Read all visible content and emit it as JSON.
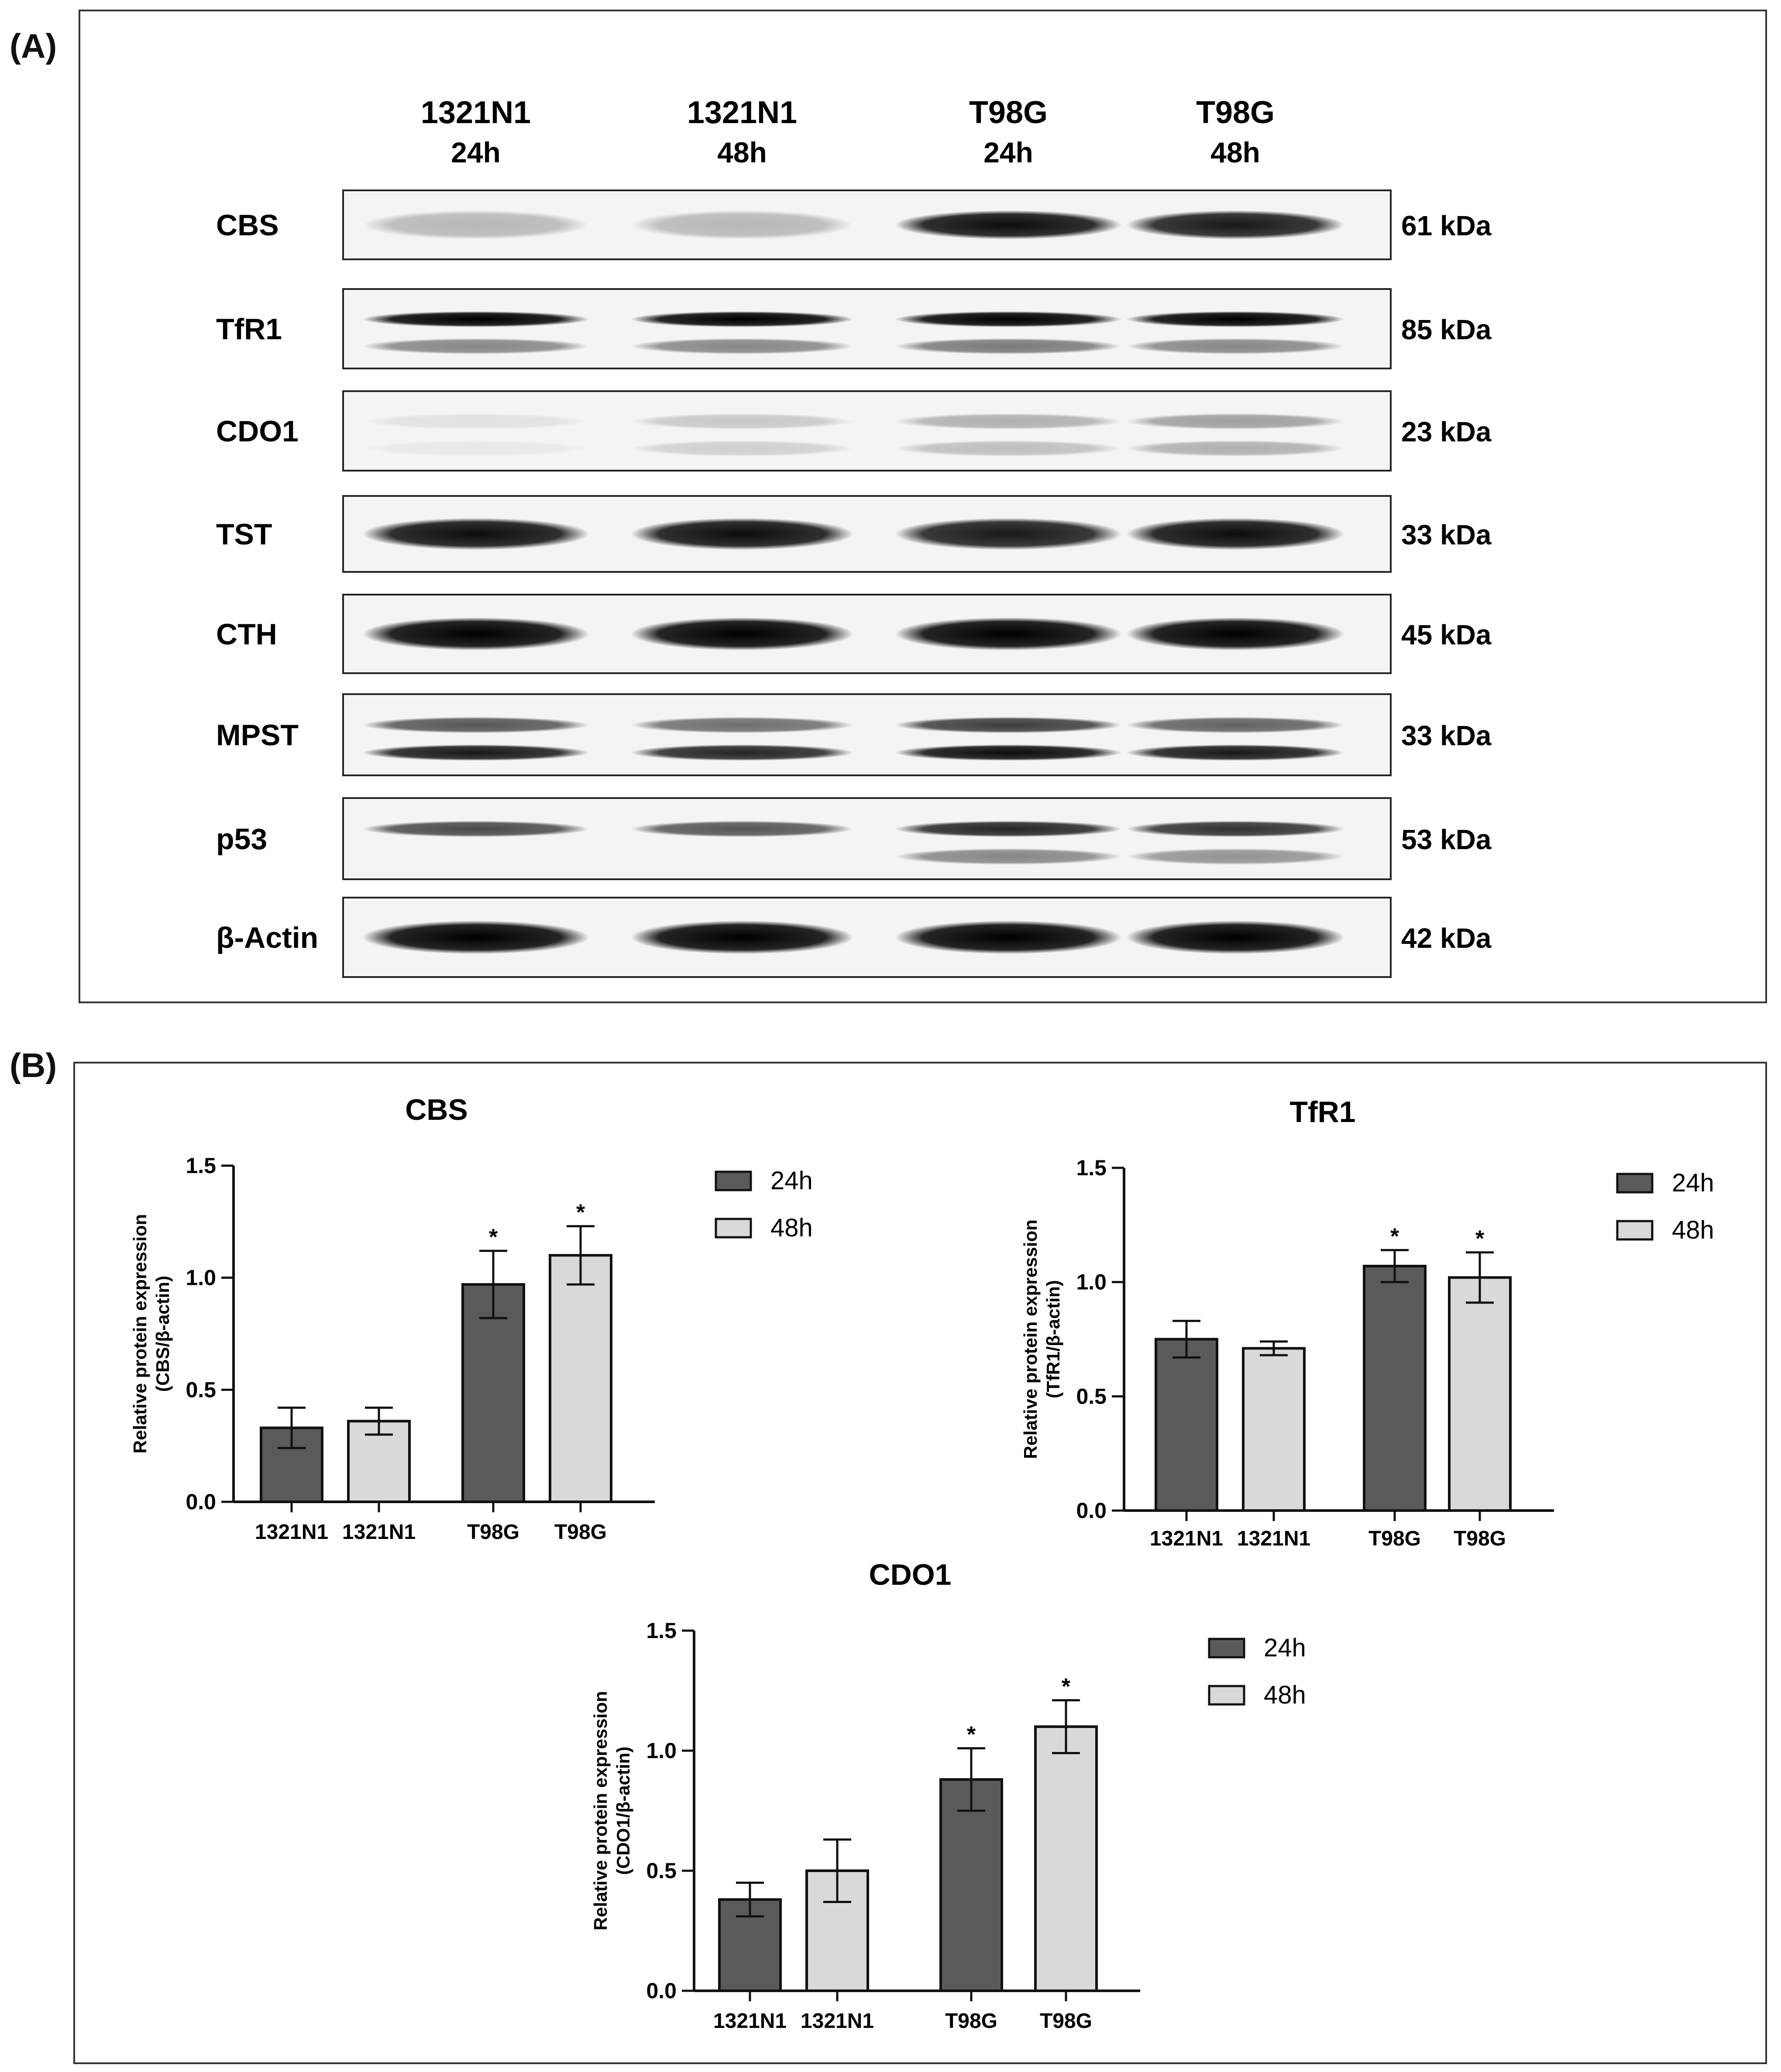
{
  "panel_a": {
    "label": "(A)",
    "lanes": [
      {
        "line": "1321N1",
        "time": "24h"
      },
      {
        "line": "1321N1",
        "time": "48h"
      },
      {
        "line": "T98G",
        "time": "24h"
      },
      {
        "line": "T98G",
        "time": "48h"
      }
    ],
    "blots": [
      {
        "protein": "CBS",
        "kda": "61 kDa",
        "bands": [
          [
            0.25,
            0.25,
            0.95,
            0.9
          ]
        ]
      },
      {
        "protein": "TfR1",
        "kda": "85 kDa",
        "bands": [
          [
            1,
            1,
            1,
            1
          ],
          [
            0.45,
            0.45,
            0.5,
            0.45
          ]
        ]
      },
      {
        "protein": "CDO1",
        "kda": "23 kDa",
        "bands": [
          [
            0.08,
            0.18,
            0.28,
            0.35
          ],
          [
            0.05,
            0.15,
            0.22,
            0.28
          ]
        ]
      },
      {
        "protein": "TST",
        "kda": "33 kDa",
        "bands": [
          [
            0.95,
            0.95,
            0.9,
            0.95
          ]
        ]
      },
      {
        "protein": "CTH",
        "kda": "45 kDa",
        "bands": [
          [
            1,
            1,
            1,
            1
          ]
        ]
      },
      {
        "protein": "MPST",
        "kda": "33 kDa",
        "bands": [
          [
            0.65,
            0.55,
            0.75,
            0.6
          ],
          [
            0.9,
            0.85,
            0.95,
            0.9
          ]
        ]
      },
      {
        "protein": "p53",
        "kda": "53 kDa",
        "bands": [
          [
            0.7,
            0.65,
            0.85,
            0.8
          ],
          [
            0.0,
            0.0,
            0.45,
            0.4
          ]
        ]
      },
      {
        "protein": "β-Actin",
        "kda": "42 kDa",
        "bands": [
          [
            1,
            1,
            1,
            1
          ]
        ]
      }
    ]
  },
  "panel_b": {
    "label": "(B)"
  },
  "colors": {
    "dark_bar": "#5a5a5a",
    "light_bar": "#d9d9d9",
    "axis": "#111111"
  },
  "chart_data": [
    {
      "type": "bar",
      "title": "CBS",
      "ylabel": [
        "Relative protein expression",
        "(CBS/β-actin)"
      ],
      "ylim": [
        0,
        1.5
      ],
      "yticks": [
        "0.0",
        "0.5",
        "1.0",
        "1.5"
      ],
      "categories": [
        "1321N1",
        "1321N1",
        "T98G",
        "T98G"
      ],
      "values": [
        0.33,
        0.36,
        0.97,
        1.1
      ],
      "errors": [
        0.09,
        0.06,
        0.15,
        0.13
      ],
      "significance": [
        "",
        "",
        "*",
        "*"
      ],
      "series_of_bar": [
        0,
        1,
        0,
        1
      ],
      "legend": [
        "24h",
        "48h"
      ],
      "legend_position": "top-right"
    },
    {
      "type": "bar",
      "title": "TfR1",
      "ylabel": [
        "Relative protein expression",
        "(TfR1/β-actin)"
      ],
      "ylim": [
        0,
        1.5
      ],
      "yticks": [
        "0.0",
        "0.5",
        "1.0",
        "1.5"
      ],
      "categories": [
        "1321N1",
        "1321N1",
        "T98G",
        "T98G"
      ],
      "values": [
        0.75,
        0.71,
        1.07,
        1.02
      ],
      "errors": [
        0.08,
        0.03,
        0.07,
        0.11
      ],
      "significance": [
        "",
        "",
        "*",
        "*"
      ],
      "series_of_bar": [
        0,
        1,
        0,
        1
      ],
      "legend": [
        "24h",
        "48h"
      ],
      "legend_position": "top-right"
    },
    {
      "type": "bar",
      "title": "CDO1",
      "ylabel": [
        "Relative protein expression",
        "(CDO1/β-actin)"
      ],
      "ylim": [
        0,
        1.5
      ],
      "yticks": [
        "0.0",
        "0.5",
        "1.0",
        "1.5"
      ],
      "categories": [
        "1321N1",
        "1321N1",
        "T98G",
        "T98G"
      ],
      "values": [
        0.38,
        0.5,
        0.88,
        1.1
      ],
      "errors": [
        0.07,
        0.13,
        0.13,
        0.11
      ],
      "significance": [
        "",
        "",
        "*",
        "*"
      ],
      "series_of_bar": [
        0,
        1,
        0,
        1
      ],
      "legend": [
        "24h",
        "48h"
      ],
      "legend_position": "top-right"
    }
  ]
}
